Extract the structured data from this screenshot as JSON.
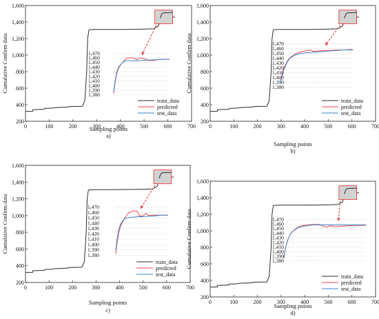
{
  "colors": {
    "train": "#2b2b2b",
    "predicted": "#e8474a",
    "test": "#3a86c8",
    "grid": "#b8b8b8",
    "arrow": "#e8282b",
    "zoom_fill": "#d2d2d2"
  },
  "chart_data": [
    {
      "type": "line",
      "panel_label": "a)",
      "xlabel": "Sampling points",
      "ylabel": "Cumulative Confirm data",
      "xlim": [
        0,
        700
      ],
      "ylim": [
        200,
        1600
      ],
      "xticks": [
        0,
        100,
        200,
        300,
        400,
        500,
        600,
        700
      ],
      "yticks": [
        200,
        400,
        600,
        800,
        1000,
        1200,
        1400,
        1600
      ],
      "ytick_labels": [
        "200",
        "400",
        "600",
        "800",
        "1,000",
        "1,200",
        "1,400",
        "1,600"
      ],
      "legend": {
        "position": "lower-right",
        "entries": [
          "train_data",
          "predicted",
          "test_data"
        ]
      },
      "series": [
        {
          "name": "train_data",
          "color_key": "train",
          "x": [
            0,
            30,
            31,
            80,
            81,
            120,
            121,
            180,
            181,
            240,
            250,
            258,
            262,
            267,
            272,
            300,
            350,
            400,
            450,
            500,
            540,
            560,
            568,
            575,
            585,
            600,
            630
          ],
          "y": [
            320,
            320,
            340,
            345,
            355,
            360,
            365,
            372,
            378,
            382,
            450,
            800,
            1200,
            1300,
            1308,
            1310,
            1310,
            1311,
            1312,
            1314,
            1318,
            1350,
            1430,
            1450,
            1455,
            1457,
            1460
          ]
        }
      ],
      "inset": {
        "ylim": [
          1378,
          1472
        ],
        "yticks": [
          1380,
          1390,
          1400,
          1410,
          1420,
          1430,
          1440,
          1450,
          1460,
          1470
        ],
        "ytick_labels": [
          "1,380",
          "1,390",
          "1,400",
          "1,410",
          "1,420",
          "1,430",
          "1,440",
          "1,450",
          "1,460",
          "1,470"
        ],
        "xlim": [
          400,
          630
        ],
        "series": [
          {
            "name": "predicted",
            "color_key": "predicted",
            "x": [
              400,
              405,
              412,
              420,
              430,
              440,
              450,
              460,
              480,
              495,
              505,
              520,
              535,
              545,
              555,
              565,
              580,
              600,
              630
            ],
            "y": [
              1383,
              1405,
              1425,
              1438,
              1446,
              1452,
              1458,
              1460,
              1460,
              1456,
              1460,
              1459,
              1457,
              1454,
              1455,
              1454,
              1456,
              1457,
              1457
            ]
          },
          {
            "name": "test_data",
            "color_key": "test",
            "x": [
              400,
              405,
              412,
              420,
              430,
              440,
              450,
              470,
              500,
              520,
              540,
              560,
              580,
              600,
              630
            ],
            "y": [
              1387,
              1408,
              1428,
              1440,
              1446,
              1451,
              1454,
              1454,
              1454,
              1455,
              1455,
              1456,
              1456,
              1457,
              1457
            ]
          }
        ]
      }
    },
    {
      "type": "line",
      "panel_label": "b)",
      "xlabel": "Sampling points",
      "ylabel": "Cumulative Confirm data",
      "xlim": [
        0,
        700
      ],
      "ylim": [
        200,
        1600
      ],
      "xticks": [
        0,
        100,
        200,
        300,
        400,
        500,
        600,
        700
      ],
      "yticks": [
        200,
        400,
        600,
        800,
        1000,
        1200,
        1400,
        1600
      ],
      "ytick_labels": [
        "200",
        "400",
        "600",
        "800",
        "1,000",
        "1,200",
        "1,400",
        "1,600"
      ],
      "legend": {
        "position": "lower-right",
        "entries": [
          "train_data",
          "predicted",
          "test_data"
        ]
      },
      "series": [
        {
          "name": "train_data",
          "color_key": "train",
          "x": [
            0,
            30,
            31,
            80,
            81,
            120,
            121,
            180,
            181,
            240,
            250,
            258,
            262,
            267,
            272,
            300,
            350,
            400,
            450,
            500,
            540,
            560,
            568,
            575,
            585,
            600,
            630
          ],
          "y": [
            320,
            320,
            340,
            345,
            355,
            360,
            365,
            372,
            378,
            382,
            450,
            800,
            1200,
            1300,
            1308,
            1310,
            1310,
            1311,
            1312,
            1314,
            1318,
            1350,
            1430,
            1450,
            1455,
            1457,
            1460
          ]
        }
      ],
      "inset": {
        "ylim": [
          1378,
          1472
        ],
        "yticks": [
          1380,
          1390,
          1400,
          1410,
          1420,
          1430,
          1440,
          1450,
          1460,
          1470
        ],
        "ytick_labels": [
          "1,380",
          "1,390",
          "1,400",
          "1,410",
          "1,420",
          "1,430",
          "1,440",
          "1,450",
          "1,460",
          "1,470"
        ],
        "xlim": [
          400,
          630
        ],
        "series": [
          {
            "name": "predicted",
            "color_key": "predicted",
            "x": [
              400,
              410,
              420,
              430,
              445,
              460,
              480,
              495,
              505,
              520,
              540,
              560,
              580,
              600,
              630
            ],
            "y": [
              1395,
              1418,
              1432,
              1441,
              1448,
              1452,
              1455,
              1457,
              1454,
              1455,
              1456,
              1456,
              1457,
              1457,
              1458
            ]
          },
          {
            "name": "test_data",
            "color_key": "test",
            "x": [
              400,
              410,
              420,
              430,
              445,
              460,
              480,
              500,
              520,
              540,
              560,
              580,
              600,
              630
            ],
            "y": [
              1390,
              1415,
              1430,
              1440,
              1446,
              1449,
              1451,
              1452,
              1453,
              1454,
              1455,
              1456,
              1457,
              1457
            ]
          }
        ]
      }
    },
    {
      "type": "line",
      "panel_label": "c)",
      "xlabel": "Sampling points",
      "ylabel": "Cumulative Confirm data",
      "xlim": [
        0,
        700
      ],
      "ylim": [
        200,
        1600
      ],
      "xticks": [
        0,
        100,
        200,
        300,
        400,
        500,
        600,
        700
      ],
      "yticks": [
        200,
        400,
        600,
        800,
        1000,
        1200,
        1400,
        1600
      ],
      "ytick_labels": [
        "200",
        "400",
        "600",
        "800",
        "1,000",
        "1,200",
        "1,400",
        "1,600"
      ],
      "legend": {
        "position": "lower-right",
        "entries": [
          "train_data",
          "predicted",
          "test_data"
        ]
      },
      "series": [
        {
          "name": "train_data",
          "color_key": "train",
          "x": [
            0,
            30,
            31,
            80,
            81,
            120,
            121,
            180,
            181,
            240,
            250,
            258,
            262,
            267,
            272,
            300,
            350,
            400,
            450,
            500,
            540,
            560,
            568,
            575,
            585,
            600,
            630
          ],
          "y": [
            320,
            320,
            340,
            345,
            355,
            360,
            365,
            372,
            378,
            382,
            450,
            800,
            1200,
            1300,
            1308,
            1310,
            1310,
            1311,
            1312,
            1314,
            1318,
            1350,
            1430,
            1450,
            1455,
            1457,
            1460
          ]
        }
      ],
      "inset": {
        "ylim": [
          1378,
          1472
        ],
        "yticks": [
          1380,
          1390,
          1400,
          1410,
          1420,
          1430,
          1440,
          1450,
          1460,
          1470
        ],
        "ytick_labels": [
          "1,470",
          "1,460",
          "1,450",
          "1,440",
          "1,430",
          "1,420",
          "1,410",
          "1,400",
          "1,390",
          "1,380"
        ],
        "ytick_labels_order": "top-down",
        "xlim": [
          400,
          630
        ],
        "series": [
          {
            "name": "predicted",
            "color_key": "predicted",
            "x": [
              400,
              405,
              412,
              420,
              430,
              440,
              450,
              460,
              470,
              480,
              495,
              505,
              520,
              535,
              545,
              560,
              580,
              600,
              630
            ],
            "y": [
              1382,
              1402,
              1420,
              1433,
              1442,
              1450,
              1456,
              1460,
              1462,
              1463,
              1462,
              1453,
              1454,
              1458,
              1454,
              1455,
              1455,
              1455,
              1455
            ]
          },
          {
            "name": "test_data",
            "color_key": "test",
            "x": [
              400,
              405,
              412,
              420,
              430,
              440,
              450,
              470,
              500,
              520,
              540,
              560,
              580,
              600,
              630
            ],
            "y": [
              1388,
              1408,
              1426,
              1437,
              1444,
              1448,
              1450,
              1451,
              1452,
              1452,
              1453,
              1453,
              1454,
              1455,
              1455
            ]
          }
        ]
      }
    },
    {
      "type": "line",
      "panel_label": "d)",
      "xlabel": "Sampling points",
      "ylabel": "Cumulative Confirm data",
      "xlim": [
        0,
        700
      ],
      "ylim": [
        200,
        1600
      ],
      "xticks": [
        0,
        100,
        200,
        300,
        400,
        500,
        600,
        700
      ],
      "yticks": [
        200,
        400,
        600,
        800,
        1000,
        1200,
        1400,
        1600
      ],
      "ytick_labels": [
        "200",
        "400",
        "600",
        "800",
        "1,000",
        "1,200",
        "1,400",
        "1,600"
      ],
      "legend": {
        "position": "lower-right",
        "entries": [
          "train_data",
          "predicted",
          "test_data"
        ]
      },
      "series": [
        {
          "name": "train_data",
          "color_key": "train",
          "x": [
            0,
            30,
            31,
            80,
            81,
            120,
            121,
            180,
            181,
            240,
            250,
            258,
            262,
            267,
            272,
            300,
            350,
            400,
            450,
            500,
            540,
            560,
            568,
            575,
            585,
            600,
            630
          ],
          "y": [
            320,
            320,
            340,
            345,
            355,
            360,
            365,
            372,
            378,
            382,
            450,
            800,
            1200,
            1300,
            1308,
            1310,
            1310,
            1311,
            1312,
            1314,
            1318,
            1350,
            1430,
            1450,
            1455,
            1457,
            1460
          ]
        }
      ],
      "inset": {
        "ylim": [
          1378,
          1472
        ],
        "yticks": [
          1380,
          1390,
          1400,
          1410,
          1420,
          1430,
          1440,
          1450,
          1460,
          1470
        ],
        "ytick_labels": [
          "1,380",
          "1,390",
          "1,400",
          "1,410",
          "1,420",
          "1,430",
          "1,440",
          "1,450",
          "1,460",
          "1,470"
        ],
        "xlim": [
          400,
          630
        ],
        "series": [
          {
            "name": "predicted",
            "color_key": "predicted",
            "x": [
              400,
              405,
              412,
              420,
              430,
              440,
              455,
              470,
              485,
              500,
              510,
              520,
              530,
              545,
              560,
              580,
              600,
              630
            ],
            "y": [
              1385,
              1410,
              1428,
              1440,
              1448,
              1453,
              1457,
              1458,
              1459,
              1459,
              1455,
              1453,
              1456,
              1454,
              1455,
              1456,
              1457,
              1457
            ]
          },
          {
            "name": "test_data",
            "color_key": "test",
            "x": [
              400,
              405,
              412,
              420,
              430,
              440,
              455,
              470,
              485,
              500,
              520,
              540,
              560,
              580,
              600,
              630
            ],
            "y": [
              1387,
              1410,
              1428,
              1440,
              1447,
              1452,
              1455,
              1457,
              1458,
              1458,
              1458,
              1458,
              1458,
              1458,
              1458,
              1458
            ]
          }
        ]
      }
    }
  ]
}
